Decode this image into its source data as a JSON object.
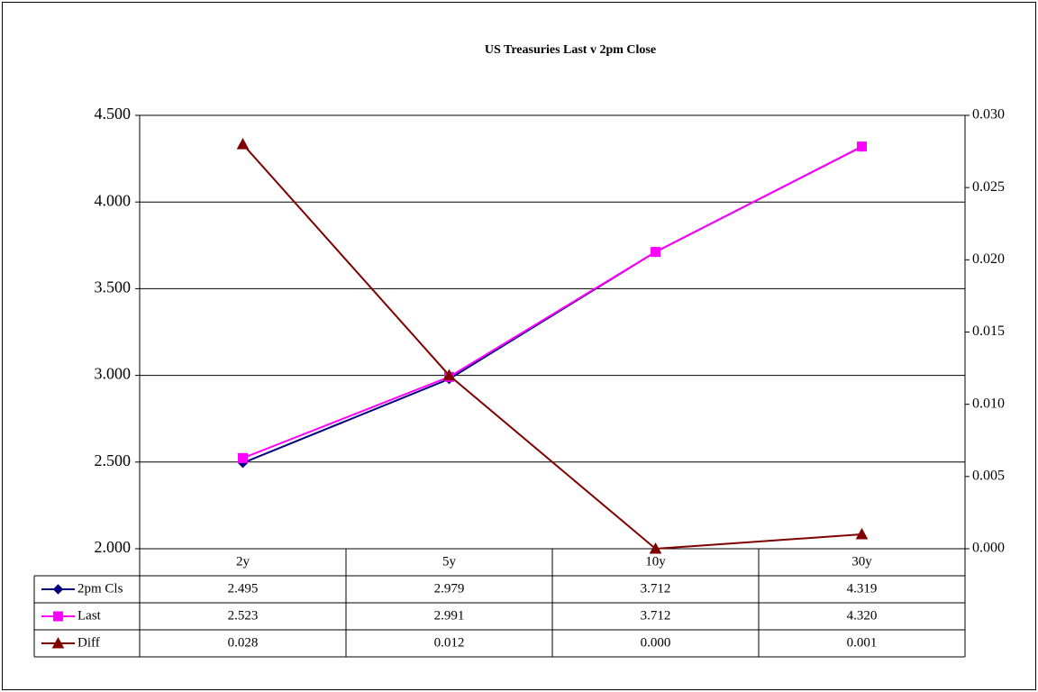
{
  "chart_data": {
    "type": "line",
    "title": "US Treasuries Last v 2pm Close",
    "categories": [
      "2y",
      "5y",
      "10y",
      "30y"
    ],
    "y_left": {
      "min": 2.0,
      "max": 4.5,
      "step": 0.5,
      "tick_labels": [
        "2.000",
        "2.500",
        "3.000",
        "3.500",
        "4.000",
        "4.500"
      ]
    },
    "y_right": {
      "min": 0.0,
      "max": 0.03,
      "step": 0.005,
      "tick_labels": [
        "0.000",
        "0.005",
        "0.010",
        "0.015",
        "0.020",
        "0.025",
        "0.030"
      ]
    },
    "grid": true,
    "legend": "data-table",
    "series": [
      {
        "name": "2pm Cls",
        "axis": "left",
        "color": "#000080",
        "marker": "diamond",
        "values": [
          2.495,
          2.979,
          3.712,
          4.319
        ],
        "labels": [
          "2.495",
          "2.979",
          "3.712",
          "4.319"
        ]
      },
      {
        "name": "Last",
        "axis": "left",
        "color": "#FF00FF",
        "marker": "square",
        "values": [
          2.523,
          2.991,
          3.712,
          4.32
        ],
        "labels": [
          "2.523",
          "2.991",
          "3.712",
          "4.320"
        ]
      },
      {
        "name": "Diff",
        "axis": "right",
        "color": "#800000",
        "marker": "triangle",
        "values": [
          0.028,
          0.012,
          0.0,
          0.001
        ],
        "labels": [
          "0.028",
          "0.012",
          "0.000",
          "0.001"
        ]
      }
    ]
  }
}
